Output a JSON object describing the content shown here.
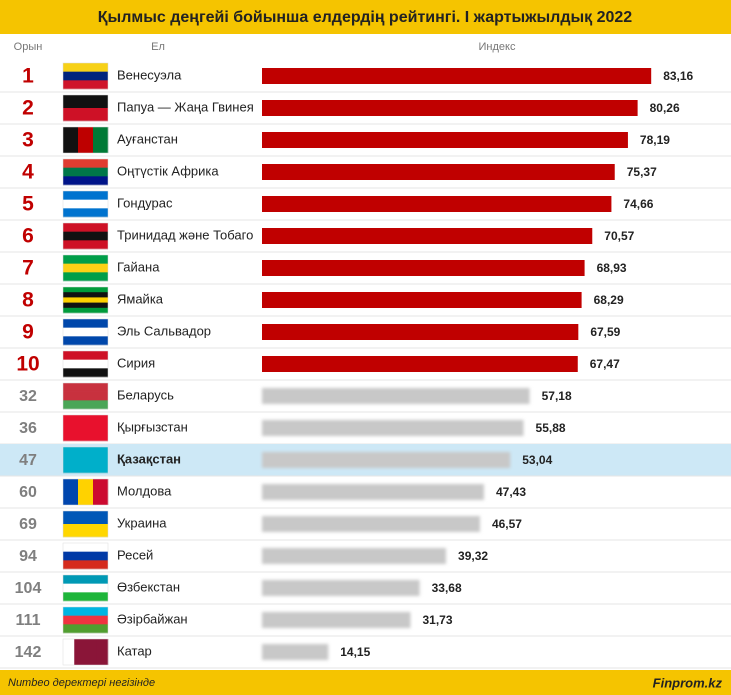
{
  "chart_data": {
    "type": "bar",
    "title": "Қылмыс деңгейі бойынша елдердің рейтингі. I жартыжылдық 2022",
    "rank_header": "Орын",
    "category_header": "Ел",
    "value_header": "Индекс",
    "ranks": [
      1,
      2,
      3,
      4,
      5,
      6,
      7,
      8,
      9,
      10,
      32,
      36,
      47,
      60,
      69,
      94,
      104,
      111,
      142
    ],
    "categories": [
      "Венесуэла",
      "Папуа — Жаңа Гвинея",
      "Ауғанстан",
      "Оңтүстік Африка",
      "Гондурас",
      "Тринидад және Тобаго",
      "Гайана",
      "Ямайка",
      "Эль Сальвадор",
      "Сирия",
      "Беларусь",
      "Қырғызстан",
      "Қазақстан",
      "Молдова",
      "Украина",
      "Ресей",
      "Өзбекстан",
      "Әзірбайжан",
      "Катар"
    ],
    "values": [
      83.16,
      80.26,
      78.19,
      75.37,
      74.66,
      70.57,
      68.93,
      68.29,
      67.59,
      67.47,
      57.18,
      55.88,
      53.04,
      47.43,
      46.57,
      39.32,
      33.68,
      31.73,
      14.15
    ],
    "value_labels": [
      "83,16",
      "80,26",
      "78,19",
      "75,37",
      "74,66",
      "70,57",
      "68,93",
      "68,29",
      "67,59",
      "67,47",
      "57,18",
      "55,88",
      "53,04",
      "47,43",
      "46,57",
      "39,32",
      "33,68",
      "31,73",
      "14,15"
    ],
    "colors": [
      "#c00000",
      "#c00000",
      "#c00000",
      "#c00000",
      "#c00000",
      "#c00000",
      "#c00000",
      "#c00000",
      "#c00000",
      "#c00000",
      "#c8c8c8",
      "#c8c8c8",
      "#c8c8c8",
      "#c8c8c8",
      "#c8c8c8",
      "#c8c8c8",
      "#c8c8c8",
      "#c8c8c8",
      "#c8c8c8"
    ],
    "highlight_index": 12,
    "xlim": [
      0,
      100
    ],
    "source": "Numbeo деректері негізінде",
    "credit": "Finprom.kz"
  }
}
